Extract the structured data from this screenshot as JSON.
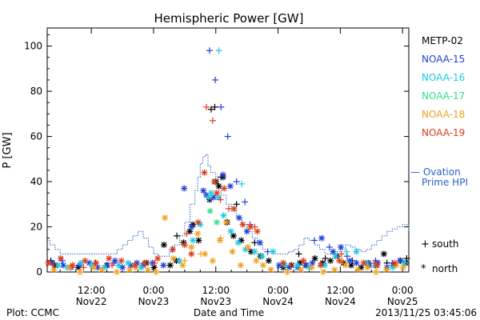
{
  "chart_data": {
    "type": "scatter",
    "title": "Hemispheric Power [GW]",
    "ylabel": "P [GW]",
    "xlabel": "Date and Time",
    "ylim": [
      0,
      108
    ],
    "yticks": [
      0,
      20,
      40,
      60,
      80,
      100
    ],
    "x_unit": "hours since 2013-11-21 00:00 UT",
    "xlim": [
      3.5,
      73.2
    ],
    "xticks": [
      {
        "x": 12,
        "line1": "12:00",
        "line2": "Nov22"
      },
      {
        "x": 24,
        "line1": "0:00",
        "line2": "Nov23"
      },
      {
        "x": 36,
        "line1": "12:00",
        "line2": "Nov23"
      },
      {
        "x": 48,
        "line1": "0:00",
        "line2": "Nov24"
      },
      {
        "x": 60,
        "line1": "12:00",
        "line2": "Nov24"
      },
      {
        "x": 72,
        "line1": "0:00",
        "line2": "Nov25"
      }
    ],
    "footer_left": "Plot: CCMC",
    "footer_right": "2013/11/25 03:45:06",
    "legend": {
      "satellites": [
        {
          "name": "METP-02",
          "color": "#000000"
        },
        {
          "name": "NOAA-15",
          "color": "#1f3fd8"
        },
        {
          "name": "NOAA-16",
          "color": "#1ec8e6"
        },
        {
          "name": "NOAA-17",
          "color": "#2ee089"
        },
        {
          "name": "NOAA-18",
          "color": "#f0a020"
        },
        {
          "name": "NOAA-19",
          "color": "#dc3b1e"
        }
      ],
      "ovation": {
        "label_line1": "— Ovation",
        "label_line2": "Prime HPI",
        "color": "#2a5fc8"
      },
      "markers": [
        {
          "symbol": "+",
          "label": "south"
        },
        {
          "symbol": "*",
          "label": "north"
        }
      ]
    },
    "ovation_series": {
      "name": "Ovation Prime HPI",
      "color": "#2a5fc8",
      "x": [
        3.5,
        4.0,
        5.0,
        6.0,
        7.0,
        8.0,
        9.0,
        10.0,
        11.0,
        12.0,
        13.0,
        14.0,
        15.0,
        16.0,
        17.0,
        18.0,
        19.0,
        20.0,
        21.0,
        22.0,
        23.0,
        24.0,
        25.0,
        26.0,
        27.0,
        28.0,
        29.0,
        30.0,
        31.0,
        32.0,
        32.5,
        33.0,
        33.5,
        34.0,
        34.5,
        35.0,
        36.0,
        36.5,
        37.0,
        38.0,
        39.0,
        40.0,
        41.0,
        42.0,
        43.0,
        44.0,
        45.0,
        46.0,
        47.0,
        48.0,
        49.0,
        50.0,
        51.0,
        52.0,
        53.0,
        54.0,
        55.0,
        56.0,
        57.0,
        58.0,
        59.0,
        60.0,
        61.0,
        62.0,
        63.0,
        64.0,
        65.0,
        66.0,
        67.0,
        68.0,
        69.0,
        70.0,
        71.0,
        72.0,
        73.2
      ],
      "y": [
        14,
        12,
        10,
        8,
        8,
        8,
        8,
        8,
        8,
        8,
        8,
        8,
        8,
        8,
        10,
        12,
        14,
        16,
        18,
        15,
        11,
        8,
        7,
        7,
        9,
        12,
        16,
        22,
        30,
        36,
        42,
        48,
        51,
        52,
        47,
        44,
        42,
        37,
        34,
        30,
        27,
        24,
        21,
        18,
        15,
        12,
        10,
        9,
        8,
        8,
        8,
        9,
        10,
        12,
        15,
        14,
        12,
        10,
        8,
        8,
        9,
        10,
        12,
        11,
        10,
        9,
        10,
        12,
        14,
        16,
        18,
        19,
        20,
        21,
        18
      ]
    },
    "series": [
      {
        "name": "METP-02",
        "color": "#000000",
        "south_x": [
          4.2,
          12.8,
          28.5,
          35.1,
          35.8,
          37.0,
          40.0,
          43.5,
          52.0,
          57.1,
          62.3,
          69.0,
          72.8
        ],
        "south_y": [
          5,
          4,
          16,
          72,
          73,
          42,
          30,
          13,
          8,
          6,
          5,
          4,
          6
        ],
        "north_x": [
          5.0,
          9.5,
          15.0,
          22.6,
          24.1,
          26.0,
          27.2,
          28.4,
          29.8,
          31.0,
          31.6,
          32.7,
          34.8,
          36.0,
          36.6,
          37.4,
          38.2,
          39.4,
          40.9,
          42.8,
          44.6,
          46.2,
          49.0,
          50.6,
          52.2,
          53.4,
          55.1,
          56.6,
          58.1,
          59.4,
          60.6,
          62.1,
          64.0,
          65.4,
          66.8,
          68.4,
          70.2,
          71.6,
          72.6
        ],
        "north_y": [
          3,
          2,
          3,
          4,
          2,
          12,
          3,
          5,
          13,
          18,
          21,
          14,
          32,
          40,
          38,
          42,
          22,
          16,
          14,
          9,
          7,
          5,
          2,
          3,
          4,
          3,
          6,
          4,
          5,
          7,
          4,
          3,
          2,
          4,
          3,
          8,
          3,
          5,
          4
        ]
      },
      {
        "name": "NOAA-15",
        "color": "#1f3fd8",
        "south_x": [
          6.4,
          16.3,
          27.6,
          34.8,
          35.9,
          37.0,
          38.3,
          40.0,
          41.6,
          42.6,
          46.0,
          55.0,
          57.9,
          61.3,
          66.8,
          70.0
        ],
        "south_y": [
          5,
          4,
          10,
          98,
          85,
          73,
          60,
          40,
          31,
          21,
          9,
          14,
          11,
          7,
          5,
          4
        ],
        "north_x": [
          4.5,
          6.6,
          8.1,
          9.8,
          11.6,
          13.2,
          15.1,
          16.6,
          18.0,
          19.6,
          20.8,
          22.0,
          23.8,
          25.9,
          29.9,
          31.3,
          33.6,
          34.2,
          35.6,
          37.4,
          38.8,
          40.5,
          42.0,
          44.5,
          48.2,
          50.1,
          51.8,
          53.3,
          54.6,
          56.4,
          58.6,
          60.1,
          61.8,
          63.1,
          65.6,
          67.2,
          69.0,
          71.5
        ],
        "north_y": [
          4,
          3,
          2,
          3,
          4,
          2,
          3,
          5,
          2,
          3,
          4,
          3,
          4,
          3,
          37,
          20,
          36,
          34,
          33,
          43,
          38,
          24,
          18,
          13,
          3,
          2,
          2,
          3,
          4,
          15,
          9,
          11,
          5,
          4,
          3,
          4,
          2,
          5
        ]
      },
      {
        "name": "NOAA-16",
        "color": "#1ec8e6",
        "south_x": [
          36.6,
          41.0,
          61.2
        ],
        "south_y": [
          98,
          39,
          9
        ],
        "north_x": [
          5.6,
          7.4,
          10.0,
          12.1,
          14.5,
          17.3,
          19.1,
          21.6,
          29.0,
          31.6,
          33.0,
          34.6,
          35.1,
          36.5,
          37.5,
          38.9,
          40.3,
          41.7,
          43.5,
          44.9,
          47.0,
          49.3,
          51.7,
          54.0,
          57.0,
          59.1,
          63.1,
          65.1,
          66.7,
          70.1,
          72.3
        ],
        "north_y": [
          3,
          2,
          4,
          3,
          2,
          3,
          4,
          2,
          5,
          14,
          21,
          33,
          35,
          33,
          25,
          18,
          13,
          10,
          9,
          7,
          9,
          3,
          3,
          2,
          3,
          7,
          9,
          4,
          3,
          2,
          4
        ]
      },
      {
        "name": "NOAA-17",
        "color": "#2ee089",
        "south_x": [],
        "south_y": [],
        "north_x": [
          34.9,
          36.2
        ],
        "north_y": [
          27,
          22
        ]
      },
      {
        "name": "NOAA-18",
        "color": "#f0a020",
        "south_x": [
          30.0,
          33.1,
          36.9,
          42.5,
          60.4
        ],
        "south_y": [
          5,
          8,
          15,
          20,
          5
        ],
        "north_x": [
          4.8,
          7.8,
          9.8,
          12.5,
          14.0,
          16.9,
          19.4,
          20.6,
          22.9,
          24.5,
          26.2,
          27.8,
          29.6,
          31.3,
          32.5,
          33.9,
          35.4,
          36.8,
          38.0,
          39.2,
          40.8,
          42.2,
          43.8,
          45.1,
          46.6,
          49.8,
          52.4,
          54.5,
          56.7,
          58.9,
          61.0,
          63.4,
          65.2,
          66.9,
          68.9,
          70.8,
          72.1
        ],
        "north_y": [
          1,
          2,
          0,
          2,
          1,
          0,
          1,
          2,
          1,
          0,
          24,
          6,
          3,
          11,
          17,
          8,
          5,
          14,
          22,
          9,
          3,
          11,
          5,
          3,
          1,
          0,
          1,
          2,
          0,
          1,
          3,
          1,
          2,
          0,
          1,
          3,
          2
        ]
      },
      {
        "name": "NOAA-19",
        "color": "#dc3b1e",
        "south_x": [
          4.6,
          10.5,
          16.0,
          24.2,
          30.4,
          34.2,
          35.4,
          36.9,
          38.5,
          43.5,
          50.5,
          60.2,
          66.6
        ],
        "south_y": [
          3,
          2,
          3,
          4,
          17,
          73,
          67,
          32,
          28,
          20,
          3,
          8,
          4
        ],
        "north_x": [
          3.7,
          6.1,
          8.4,
          10.8,
          12.9,
          15.4,
          17.8,
          20.4,
          22.3,
          24.8,
          27.7,
          30.0,
          31.3,
          32.6,
          33.8,
          35.7,
          36.2,
          37.6,
          39.5,
          41.2,
          42.7,
          44.0,
          49.0,
          52.9,
          56.2,
          59.8,
          64.5,
          67.1,
          70.5
        ],
        "north_y": [
          4,
          6,
          3,
          5,
          4,
          6,
          5,
          3,
          4,
          6,
          10,
          12,
          8,
          22,
          44,
          40,
          35,
          37,
          28,
          21,
          20,
          18,
          4,
          5,
          3,
          5,
          4,
          3,
          4
        ]
      }
    ]
  }
}
